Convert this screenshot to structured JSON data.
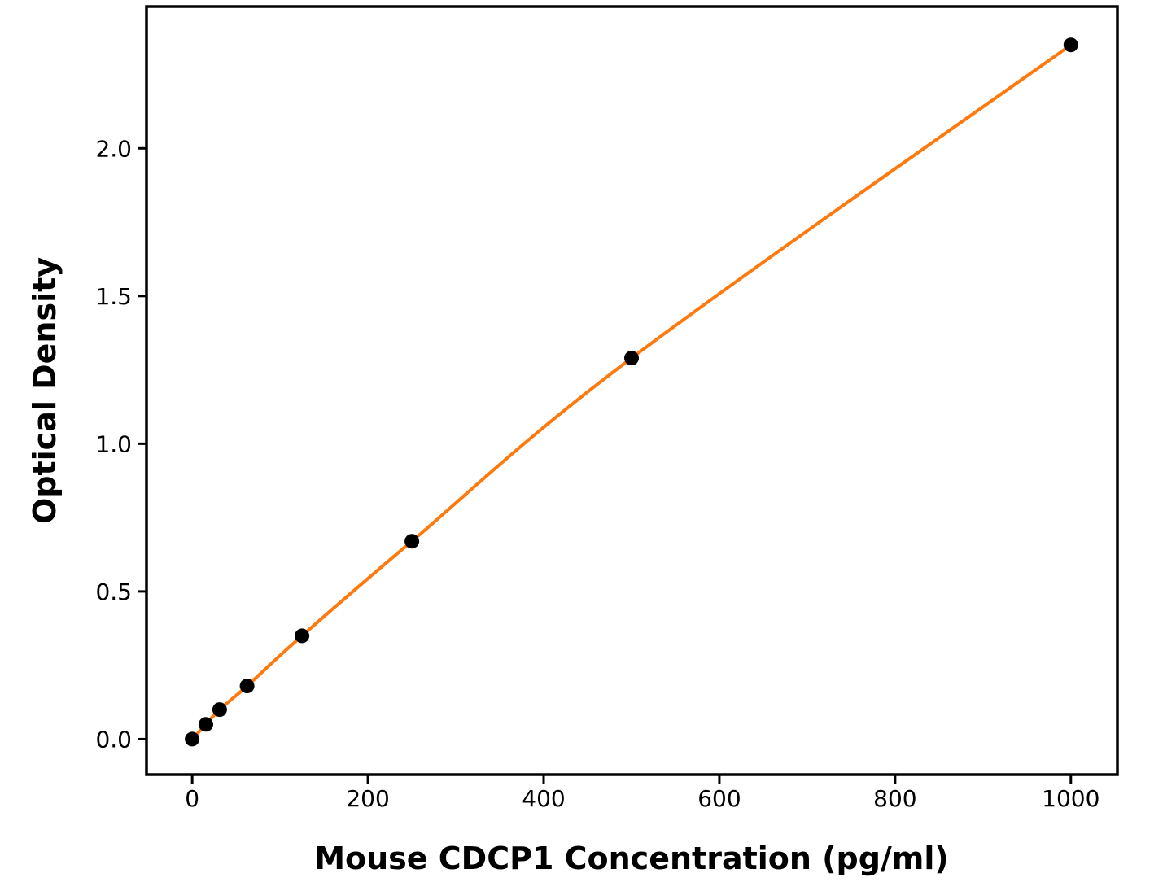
{
  "figure": {
    "background": "#ffffff"
  },
  "chart_data": {
    "type": "line",
    "subtype": "scatter-with-fitted-curve",
    "title": "",
    "xlabel": "Mouse CDCP1 Concentration (pg/ml)",
    "ylabel": "Optical Density",
    "series": [
      {
        "name": "standard-curve",
        "x": [
          0,
          15.6,
          31.25,
          62.5,
          125,
          250,
          500,
          1000
        ],
        "y": [
          0.0,
          0.05,
          0.1,
          0.18,
          0.35,
          0.67,
          1.29,
          2.35
        ],
        "line_color": "#ff7a0e",
        "line_width": 4,
        "marker": "circle",
        "marker_color": "#000000",
        "marker_radius": 9
      }
    ],
    "xticks": [
      0,
      200,
      400,
      600,
      800,
      1000
    ],
    "xtick_labels": [
      "0",
      "200",
      "400",
      "600",
      "800",
      "1000"
    ],
    "yticks": [
      0.0,
      0.5,
      1.0,
      1.5,
      2.0
    ],
    "ytick_labels": [
      "0.0",
      "0.5",
      "1.0",
      "1.5",
      "2.0"
    ],
    "xlim": [
      -52,
      1053
    ],
    "ylim": [
      -0.12,
      2.48
    ],
    "grid": false,
    "legend_position": "none",
    "axis_color": "#000000",
    "spine_width": 3.5,
    "tick_length": 11,
    "tick_width": 3
  }
}
